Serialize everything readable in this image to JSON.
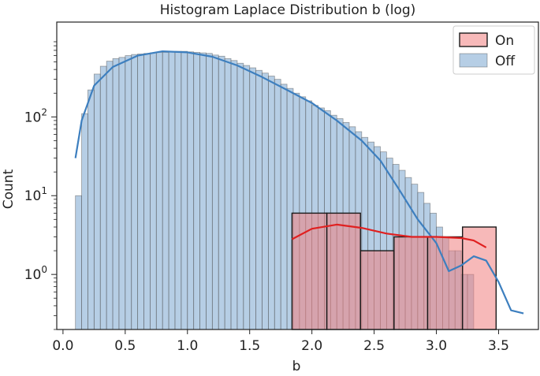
{
  "chart_data": {
    "type": "histogram",
    "title": "Histogram Laplace Distribution b (log)",
    "xlabel": "b",
    "ylabel": "Count",
    "xlim": [
      -0.05,
      3.82
    ],
    "ylim": [
      0.2,
      1600
    ],
    "y_scale": "log",
    "x_ticks": [
      "0.0",
      "0.5",
      "1.0",
      "1.5",
      "2.0",
      "2.5",
      "3.0",
      "3.5"
    ],
    "y_ticks": [
      {
        "value": 1,
        "base": "10",
        "exp": "0"
      },
      {
        "value": 10,
        "base": "10",
        "exp": "1"
      },
      {
        "value": 100,
        "base": "10",
        "exp": "2"
      }
    ],
    "legend": {
      "placement": "top-right"
    },
    "series": [
      {
        "name": "Off",
        "color": "#7aa6d0",
        "kde_color": "#3d7fbf",
        "bin_width": 0.05,
        "x_start": 0.1,
        "counts": [
          10,
          110,
          220,
          350,
          440,
          510,
          550,
          570,
          600,
          620,
          630,
          640,
          650,
          660,
          660,
          670,
          680,
          680,
          670,
          660,
          650,
          640,
          610,
          590,
          550,
          520,
          480,
          450,
          420,
          390,
          360,
          330,
          300,
          260,
          230,
          200,
          180,
          160,
          140,
          130,
          120,
          105,
          95,
          85,
          75,
          65,
          55,
          48,
          42,
          36,
          30,
          25,
          21,
          17,
          14,
          11,
          8,
          6,
          4,
          3,
          2,
          2,
          1,
          1,
          0,
          0,
          0,
          0,
          0,
          0,
          0,
          0
        ],
        "kde": [
          [
            0.1,
            30
          ],
          [
            0.15,
            90
          ],
          [
            0.25,
            250
          ],
          [
            0.4,
            430
          ],
          [
            0.6,
            600
          ],
          [
            0.8,
            680
          ],
          [
            1.0,
            660
          ],
          [
            1.2,
            580
          ],
          [
            1.4,
            450
          ],
          [
            1.6,
            320
          ],
          [
            1.8,
            220
          ],
          [
            2.0,
            150
          ],
          [
            2.2,
            90
          ],
          [
            2.4,
            50
          ],
          [
            2.55,
            28
          ],
          [
            2.7,
            12
          ],
          [
            2.85,
            5
          ],
          [
            3.0,
            2.5
          ],
          [
            3.1,
            1.1
          ],
          [
            3.2,
            1.3
          ],
          [
            3.3,
            1.7
          ],
          [
            3.4,
            1.5
          ],
          [
            3.5,
            0.8
          ],
          [
            3.6,
            0.35
          ],
          [
            3.7,
            0.32
          ]
        ]
      },
      {
        "name": "On",
        "color": "#f08080",
        "kde_color": "#e02020",
        "bins": [
          {
            "x0": 1.84,
            "x1": 2.12,
            "count": 6
          },
          {
            "x0": 2.12,
            "x1": 2.39,
            "count": 6
          },
          {
            "x0": 2.39,
            "x1": 2.66,
            "count": 2
          },
          {
            "x0": 2.66,
            "x1": 2.93,
            "count": 3
          },
          {
            "x0": 2.93,
            "x1": 3.21,
            "count": 3
          },
          {
            "x0": 3.21,
            "x1": 3.48,
            "count": 4
          }
        ],
        "kde": [
          [
            1.84,
            2.8
          ],
          [
            2.0,
            3.8
          ],
          [
            2.2,
            4.3
          ],
          [
            2.4,
            3.9
          ],
          [
            2.6,
            3.3
          ],
          [
            2.8,
            3.0
          ],
          [
            3.0,
            3.0
          ],
          [
            3.2,
            2.9
          ],
          [
            3.3,
            2.7
          ],
          [
            3.4,
            2.2
          ]
        ]
      }
    ]
  }
}
